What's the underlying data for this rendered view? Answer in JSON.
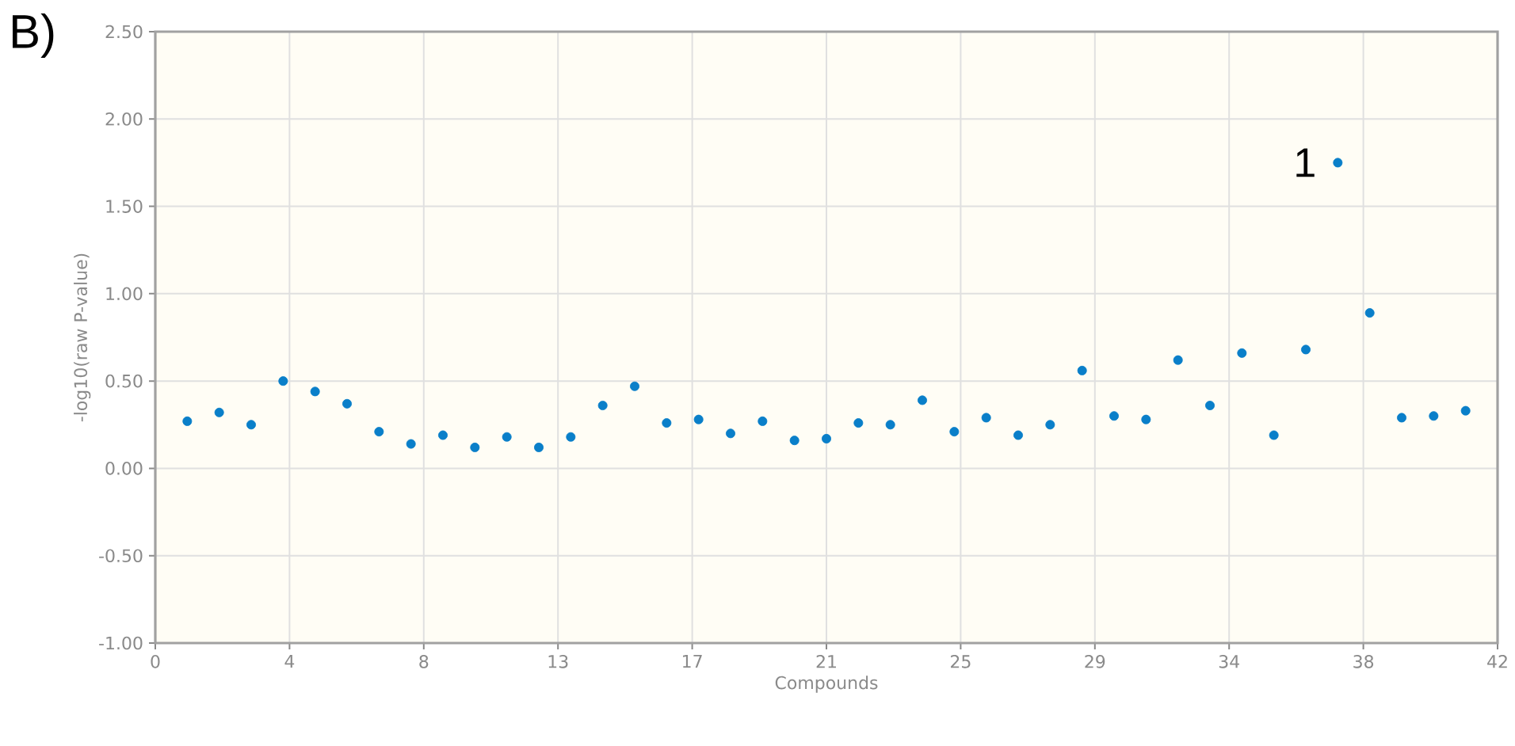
{
  "chart_data": {
    "type": "scatter",
    "title": "B)",
    "xlabel": "Compounds",
    "ylabel": "-log10(raw P-value)",
    "x": [
      1,
      2,
      3,
      4,
      5,
      6,
      7,
      8,
      9,
      10,
      11,
      12,
      13,
      14,
      15,
      16,
      17,
      18,
      19,
      20,
      21,
      22,
      23,
      24,
      25,
      26,
      27,
      28,
      29,
      30,
      31,
      32,
      33,
      34,
      35,
      36,
      37,
      38,
      39,
      40,
      41
    ],
    "series": [
      {
        "color": "#0a7fc9",
        "values": [
          0.27,
          0.32,
          0.25,
          0.5,
          0.44,
          0.37,
          0.21,
          0.14,
          0.19,
          0.12,
          0.18,
          0.12,
          0.18,
          0.36,
          0.47,
          0.26,
          0.28,
          0.2,
          0.27,
          0.16,
          0.17,
          0.26,
          0.25,
          0.39,
          0.21,
          0.29,
          0.19,
          0.25,
          0.56,
          0.3,
          0.28,
          0.62,
          0.36,
          0.66,
          0.19,
          0.68,
          1.75,
          0.89,
          0.29,
          0.3,
          0.33
        ]
      }
    ],
    "xlim": [
      0,
      42
    ],
    "xticks": [
      0,
      {
        "value": 4.2,
        "label": "4"
      },
      {
        "value": 8.4,
        "label": "8"
      },
      {
        "value": 12.6,
        "label": "13"
      },
      {
        "value": 16.8,
        "label": "17"
      },
      21,
      {
        "value": 25.2,
        "label": "25"
      },
      {
        "value": 29.4,
        "label": "29"
      },
      {
        "value": 33.6,
        "label": "34"
      },
      {
        "value": 37.8,
        "label": "38"
      },
      42
    ],
    "ylim": [
      -1,
      2.5
    ],
    "yticks": [
      {
        "value": -1,
        "label": "-1.00"
      },
      {
        "value": -0.5,
        "label": "-0.50"
      },
      {
        "value": 0,
        "label": "0.00"
      },
      {
        "value": 0.5,
        "label": "0.50"
      },
      {
        "value": 1,
        "label": "1.00"
      },
      {
        "value": 1.5,
        "label": "1.50"
      },
      {
        "value": 2,
        "label": "2.00"
      },
      {
        "value": 2.5,
        "label": "2.50"
      }
    ],
    "annotations": [
      {
        "text": "1",
        "x": 37,
        "y": 1.75
      }
    ],
    "grid": true,
    "marker": "circle"
  }
}
